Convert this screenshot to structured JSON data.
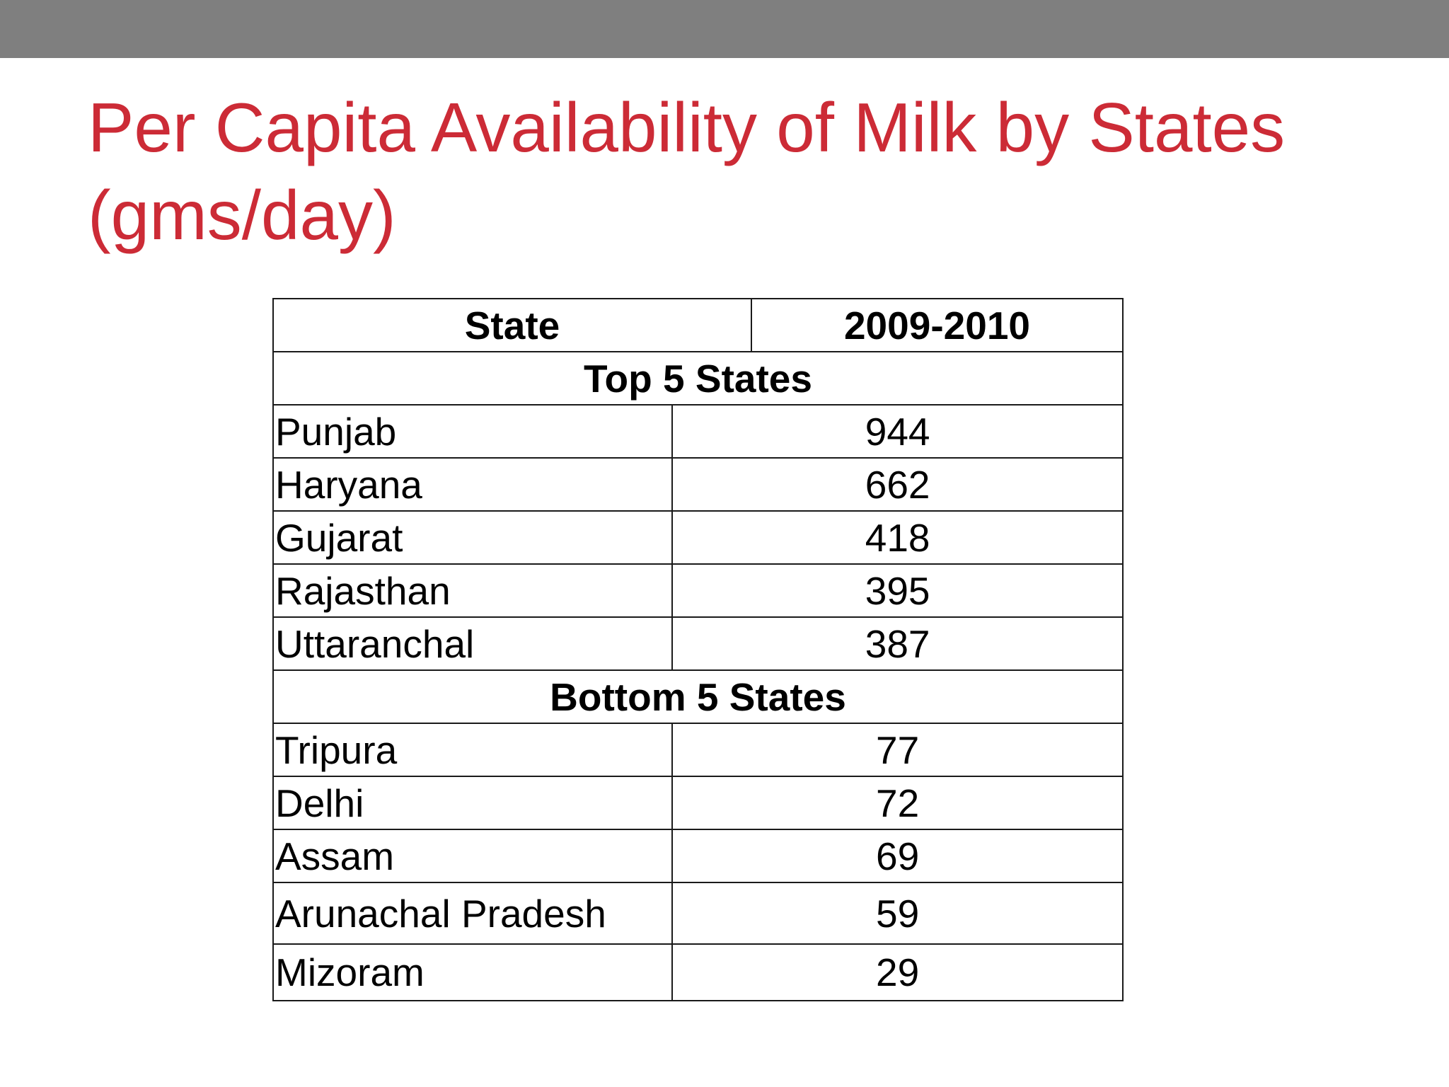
{
  "title": "Per Capita Availability of Milk by States (gms/day)",
  "table": {
    "headers": {
      "state": "State",
      "year": "2009-2010"
    },
    "sections": [
      {
        "label": "Top 5 States",
        "rows": [
          {
            "state": "Punjab",
            "value": "944"
          },
          {
            "state": "Haryana",
            "value": "662"
          },
          {
            "state": "Gujarat",
            "value": "418"
          },
          {
            "state": "Rajasthan",
            "value": "395"
          },
          {
            "state": "Uttaranchal",
            "value": "387"
          }
        ]
      },
      {
        "label": "Bottom 5 States",
        "rows": [
          {
            "state": "Tripura",
            "value": "77"
          },
          {
            "state": "Delhi",
            "value": "72"
          },
          {
            "state": "Assam",
            "value": "69"
          },
          {
            "state": "Arunachal Pradesh",
            "value": "59"
          },
          {
            "state": "Mizoram",
            "value": "29"
          }
        ]
      }
    ]
  },
  "colors": {
    "title": "#cc2b36",
    "top_bar": "#7f7f7f",
    "border": "#1a1a1a"
  }
}
